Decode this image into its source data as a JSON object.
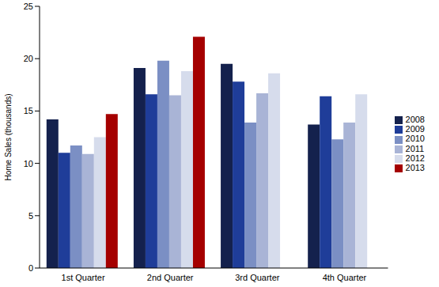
{
  "chart_data": {
    "type": "bar",
    "categories": [
      "1st Quarter",
      "2nd Quarter",
      "3rd Quarter",
      "4th Quarter"
    ],
    "y_label": "Home Sales (thousands)",
    "ylim": [
      0,
      25
    ],
    "yticks": [
      0,
      5,
      10,
      15,
      20,
      25
    ],
    "grid": false,
    "legend": "right",
    "series": [
      {
        "name": "2008",
        "color": "#14214d",
        "values": [
          14.2,
          19.1,
          19.5,
          13.7
        ]
      },
      {
        "name": "2009",
        "color": "#1f3d99",
        "values": [
          11.0,
          16.6,
          17.8,
          16.4
        ]
      },
      {
        "name": "2010",
        "color": "#7b8fc4",
        "values": [
          11.7,
          19.8,
          13.9,
          12.3
        ]
      },
      {
        "name": "2011",
        "color": "#a9b4d6",
        "values": [
          10.9,
          16.5,
          16.7,
          13.9
        ]
      },
      {
        "name": "2012",
        "color": "#d6dcec",
        "values": [
          12.5,
          18.8,
          18.6,
          16.6
        ]
      },
      {
        "name": "2013",
        "color": "#a50000",
        "values": [
          14.7,
          22.1,
          null,
          null
        ]
      }
    ]
  }
}
